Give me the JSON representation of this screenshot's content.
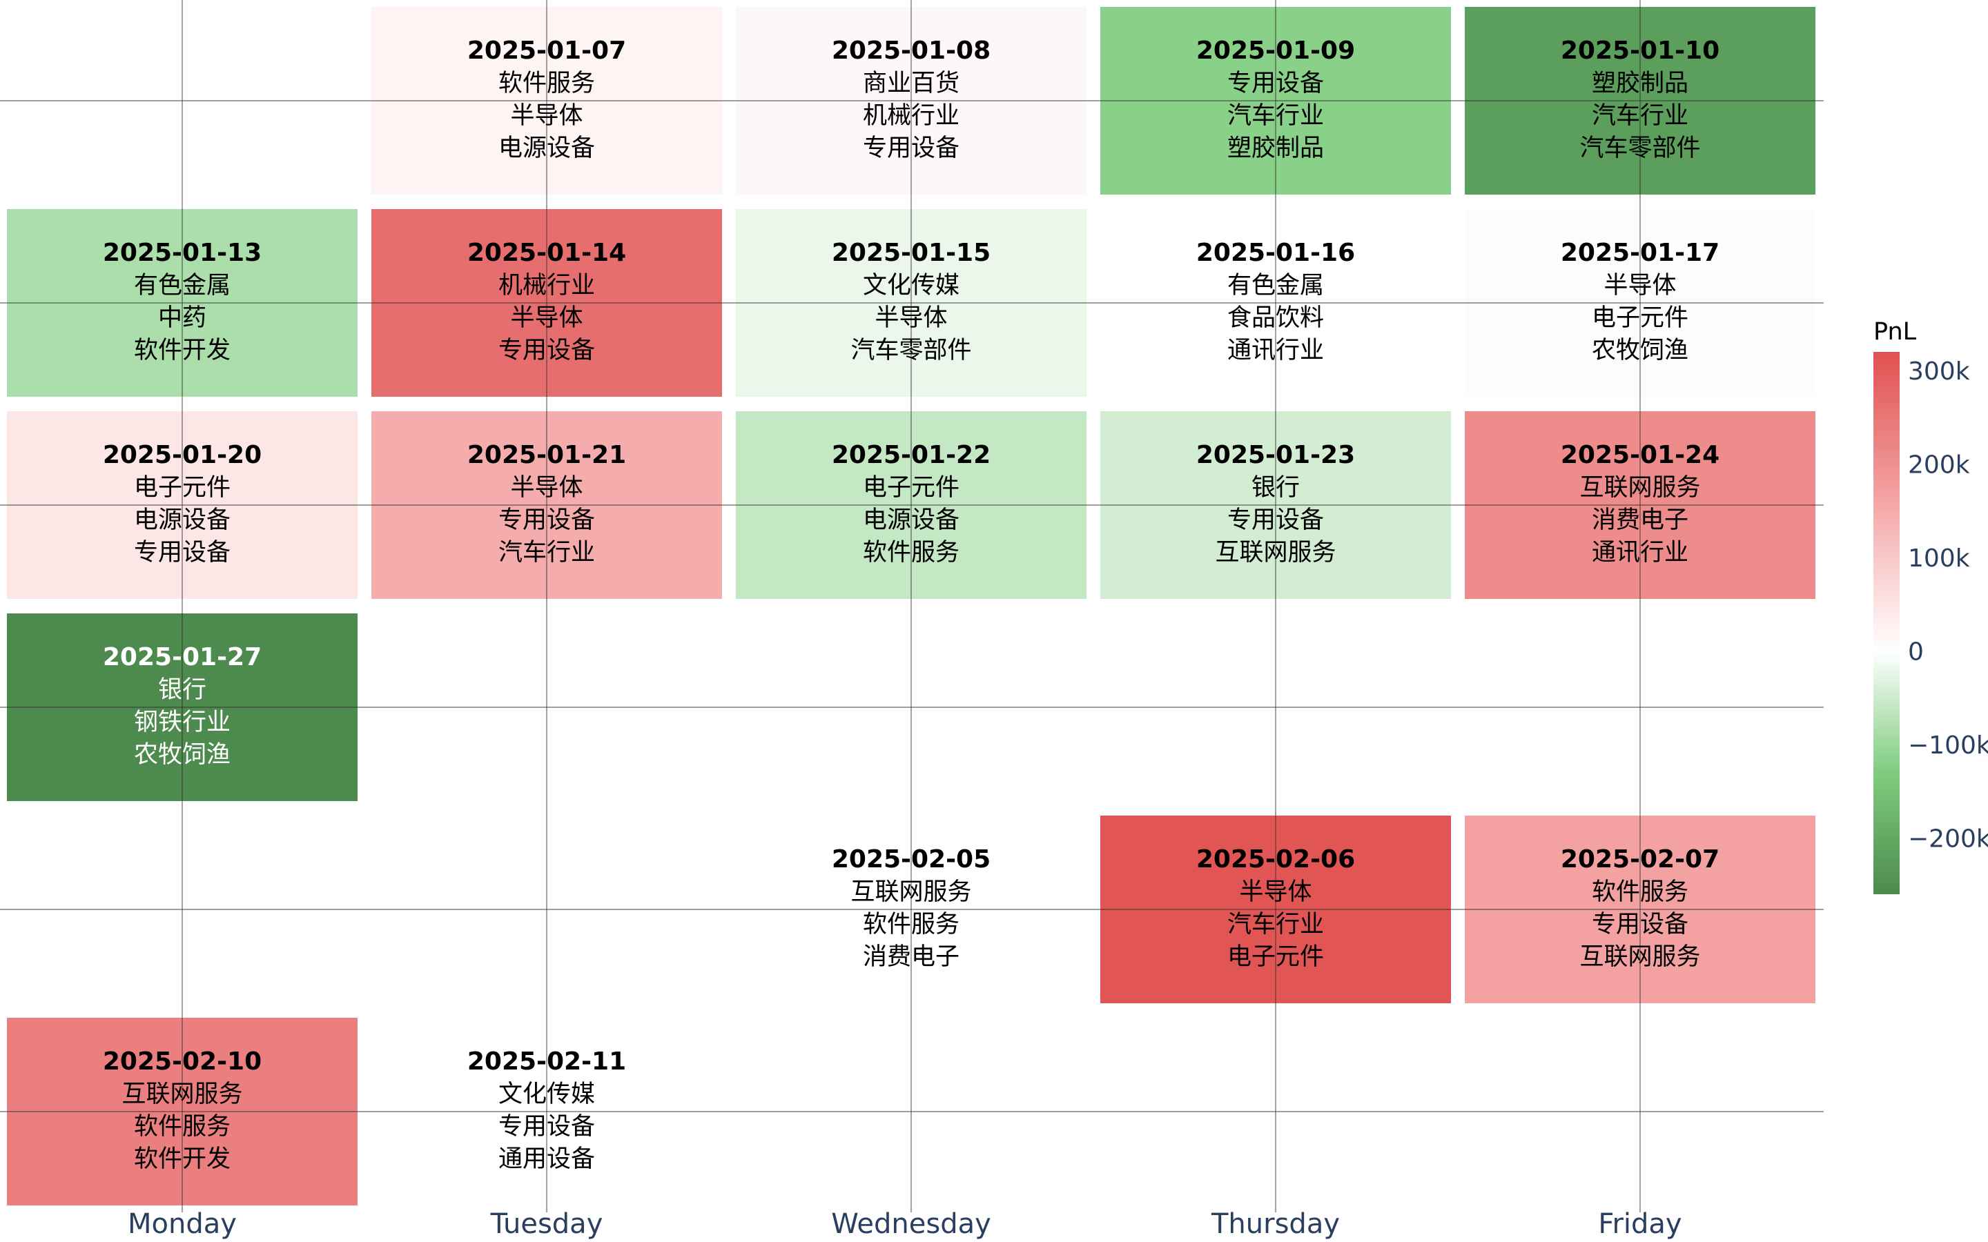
{
  "chart_data": {
    "type": "heatmap",
    "title": "",
    "x_categories": [
      "Monday",
      "Tuesday",
      "Wednesday",
      "Thursday",
      "Friday"
    ],
    "rows": 6,
    "colorbar": {
      "title": "PnL",
      "min": -260000,
      "max": 320000,
      "ticks": [
        {
          "value": 300000,
          "label": "300k"
        },
        {
          "value": 200000,
          "label": "200k"
        },
        {
          "value": 100000,
          "label": "100k"
        },
        {
          "value": 0,
          "label": "0"
        },
        {
          "value": -100000,
          "label": "−100k"
        },
        {
          "value": -200000,
          "label": "−200k"
        }
      ],
      "colors": [
        "#4d8a4d",
        "#7fcc7f",
        "#ffffff",
        "#f4a6a6",
        "#e05050"
      ]
    },
    "grid": true,
    "cells": [
      {
        "date": "2025-01-07",
        "row": 0,
        "col": 1,
        "pnl": 20000,
        "sectors": [
          "软件服务",
          "半导体",
          "电源设备"
        ]
      },
      {
        "date": "2025-01-08",
        "row": 0,
        "col": 2,
        "pnl": 15000,
        "sectors": [
          "商业百货",
          "机械行业",
          "专用设备"
        ]
      },
      {
        "date": "2025-01-09",
        "row": 0,
        "col": 3,
        "pnl": -120000,
        "sectors": [
          "专用设备",
          "汽车行业",
          "塑胶制品"
        ]
      },
      {
        "date": "2025-01-10",
        "row": 0,
        "col": 4,
        "pnl": -220000,
        "sectors": [
          "塑胶制品",
          "汽车行业",
          "汽车零部件"
        ]
      },
      {
        "date": "2025-01-13",
        "row": 1,
        "col": 0,
        "pnl": -85000,
        "sectors": [
          "有色金属",
          "中药",
          "软件开发"
        ]
      },
      {
        "date": "2025-01-14",
        "row": 1,
        "col": 1,
        "pnl": 265000,
        "sectors": [
          "机械行业",
          "半导体",
          "专用设备"
        ]
      },
      {
        "date": "2025-01-15",
        "row": 1,
        "col": 2,
        "pnl": -20000,
        "sectors": [
          "文化传媒",
          "半导体",
          "汽车零部件"
        ]
      },
      {
        "date": "2025-01-16",
        "row": 1,
        "col": 3,
        "pnl": 0,
        "sectors": [
          "有色金属",
          "食品饮料",
          "通讯行业"
        ]
      },
      {
        "date": "2025-01-17",
        "row": 1,
        "col": 4,
        "pnl": 8000,
        "sectors": [
          "半导体",
          "电子元件",
          "农牧饲渔"
        ]
      },
      {
        "date": "2025-01-20",
        "row": 2,
        "col": 0,
        "pnl": 45000,
        "sectors": [
          "电子元件",
          "电源设备",
          "专用设备"
        ]
      },
      {
        "date": "2025-01-21",
        "row": 2,
        "col": 1,
        "pnl": 150000,
        "sectors": [
          "半导体",
          "专用设备",
          "汽车行业"
        ]
      },
      {
        "date": "2025-01-22",
        "row": 2,
        "col": 2,
        "pnl": -60000,
        "sectors": [
          "电子元件",
          "电源设备",
          "软件服务"
        ]
      },
      {
        "date": "2025-01-23",
        "row": 2,
        "col": 3,
        "pnl": -45000,
        "sectors": [
          "银行",
          "专用设备",
          "互联网服务"
        ]
      },
      {
        "date": "2025-01-24",
        "row": 2,
        "col": 4,
        "pnl": 210000,
        "sectors": [
          "互联网服务",
          "消费电子",
          "通讯行业"
        ]
      },
      {
        "date": "2025-01-27",
        "row": 3,
        "col": 0,
        "pnl": -260000,
        "sectors": [
          "银行",
          "钢铁行业",
          "农牧饲渔"
        ]
      },
      {
        "date": "2025-02-05",
        "row": 4,
        "col": 2,
        "pnl": 0,
        "sectors": [
          "互联网服务",
          "软件服务",
          "消费电子"
        ]
      },
      {
        "date": "2025-02-06",
        "row": 4,
        "col": 3,
        "pnl": 310000,
        "sectors": [
          "半导体",
          "汽车行业",
          "电子元件"
        ]
      },
      {
        "date": "2025-02-07",
        "row": 4,
        "col": 4,
        "pnl": 170000,
        "sectors": [
          "软件服务",
          "专用设备",
          "互联网服务"
        ]
      },
      {
        "date": "2025-02-10",
        "row": 5,
        "col": 0,
        "pnl": 235000,
        "sectors": [
          "互联网服务",
          "软件服务",
          "软件开发"
        ]
      },
      {
        "date": "2025-02-11",
        "row": 5,
        "col": 1,
        "pnl": 0,
        "sectors": [
          "文化传媒",
          "专用设备",
          "通用设备"
        ]
      }
    ]
  }
}
